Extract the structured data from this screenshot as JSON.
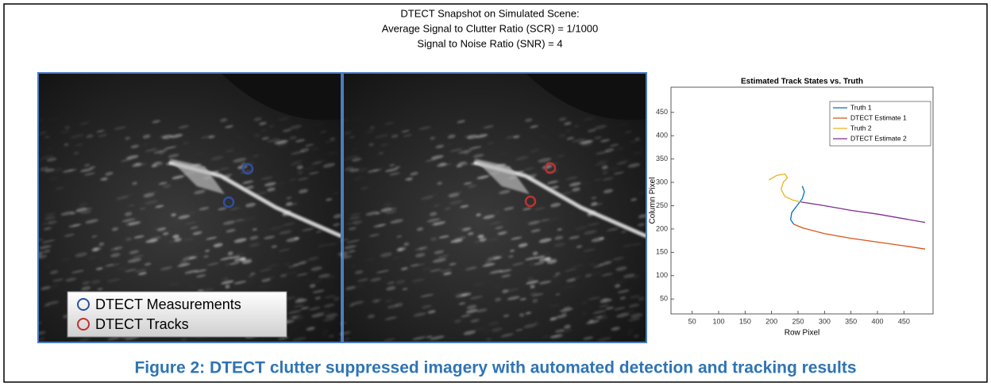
{
  "header": {
    "lines": [
      "DTECT Snapshot on Simulated Scene:",
      "Average Signal to Clutter Ratio (SCR) = 1/1000",
      "Signal to Noise Ratio (SNR) = 4"
    ]
  },
  "image_legend": [
    "DTECT Measurements",
    "DTECT Tracks"
  ],
  "chart_data": {
    "type": "line",
    "title": "Estimated Track States vs. Truth",
    "x_label": "Row Pixel",
    "y_label": "Column Pixel",
    "xlim": [
      10,
      505
    ],
    "ylim": [
      18,
      504
    ],
    "xticks": [
      50,
      100,
      150,
      200,
      250,
      300,
      350,
      400,
      450
    ],
    "yticks": [
      50,
      100,
      150,
      200,
      250,
      300,
      350,
      400,
      450
    ],
    "grid": false,
    "legend": "top-right",
    "series": [
      {
        "name": "Truth 1",
        "color": "#0072bd",
        "x": [
          258,
          262,
          258,
          248,
          238,
          236,
          242
        ],
        "values": [
          292,
          280,
          265,
          250,
          235,
          220,
          210
        ]
      },
      {
        "name": "DTECT Estimate 1",
        "color": "#d95319",
        "x": [
          242,
          260,
          300,
          350,
          400,
          450,
          490
        ],
        "values": [
          210,
          202,
          190,
          180,
          172,
          164,
          157
        ]
      },
      {
        "name": "Truth 2",
        "color": "#edb120",
        "x": [
          195,
          210,
          225,
          230,
          222,
          218,
          225,
          240,
          255
        ],
        "values": [
          305,
          315,
          318,
          310,
          300,
          285,
          270,
          262,
          258
        ]
      },
      {
        "name": "DTECT Estimate 2",
        "color": "#7e2f8e",
        "x": [
          255,
          300,
          350,
          400,
          450,
          490
        ],
        "values": [
          258,
          250,
          240,
          232,
          222,
          214
        ]
      }
    ]
  },
  "caption": "Figure 2: DTECT clutter suppressed imagery with automated detection and tracking results"
}
